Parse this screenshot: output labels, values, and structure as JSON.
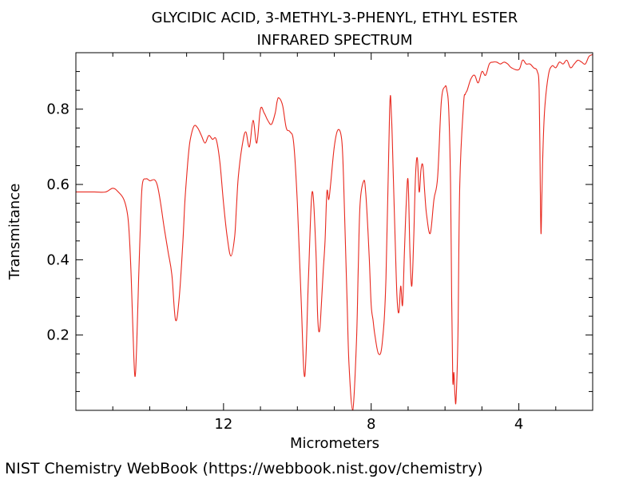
{
  "chart_data": {
    "type": "line",
    "title": "GLYCIDIC ACID, 3-METHYL-3-PHENYL, ETHYL ESTER",
    "subtitle": "INFRARED SPECTRUM",
    "xlabel": "Micrometers",
    "ylabel": "Transmitance",
    "xlim": [
      16.0,
      2.0
    ],
    "ylim": [
      0.0,
      0.95
    ],
    "x_ticks": [
      {
        "value": 12,
        "label": "12"
      },
      {
        "value": 8,
        "label": "8"
      },
      {
        "value": 4,
        "label": "4"
      }
    ],
    "y_ticks": [
      {
        "value": 0.2,
        "label": "0.2"
      },
      {
        "value": 0.4,
        "label": "0.4"
      },
      {
        "value": 0.6,
        "label": "0.6"
      },
      {
        "value": 0.8,
        "label": "0.8"
      }
    ],
    "grid": false,
    "series": [
      {
        "color": "#e8281e",
        "x": [
          16.0,
          15.5,
          15.2,
          15.0,
          14.85,
          14.7,
          14.6,
          14.55,
          14.5,
          14.45,
          14.4,
          14.35,
          14.3,
          14.25,
          14.2,
          14.1,
          14.0,
          13.8,
          13.6,
          13.5,
          13.4,
          13.3,
          13.2,
          13.1,
          13.05,
          13.0,
          12.95,
          12.9,
          12.8,
          12.7,
          12.6,
          12.5,
          12.4,
          12.3,
          12.2,
          12.1,
          12.0,
          11.9,
          11.8,
          11.7,
          11.65,
          11.6,
          11.5,
          11.4,
          11.3,
          11.2,
          11.1,
          11.0,
          10.9,
          10.8,
          10.7,
          10.6,
          10.55,
          10.5,
          10.4,
          10.3,
          10.2,
          10.1,
          10.0,
          9.9,
          9.8,
          9.7,
          9.6,
          9.5,
          9.45,
          9.4,
          9.35,
          9.3,
          9.25,
          9.2,
          9.15,
          9.1,
          9.0,
          8.9,
          8.8,
          8.75,
          8.7,
          8.65,
          8.6,
          8.5,
          8.4,
          8.35,
          8.3,
          8.2,
          8.15,
          8.1,
          8.05,
          8.0,
          7.95,
          7.9,
          7.8,
          7.7,
          7.6,
          7.5,
          7.45,
          7.4,
          7.35,
          7.3,
          7.25,
          7.2,
          7.15,
          7.1,
          7.05,
          7.0,
          6.95,
          6.9,
          6.85,
          6.8,
          6.75,
          6.7,
          6.65,
          6.6,
          6.55,
          6.5,
          6.4,
          6.3,
          6.2,
          6.1,
          6.0,
          5.95,
          5.9,
          5.85,
          5.82,
          5.79,
          5.76,
          5.73,
          5.7,
          5.65,
          5.6,
          5.5,
          5.45,
          5.4,
          5.3,
          5.2,
          5.1,
          5.0,
          4.9,
          4.8,
          4.7,
          4.6,
          4.5,
          4.4,
          4.3,
          4.2,
          4.0,
          3.9,
          3.8,
          3.7,
          3.6,
          3.5,
          3.45,
          3.42,
          3.4,
          3.38,
          3.35,
          3.3,
          3.2,
          3.1,
          3.0,
          2.9,
          2.8,
          2.7,
          2.6,
          2.5,
          2.4,
          2.3,
          2.2,
          2.1,
          2.0
        ],
        "y": [
          0.58,
          0.58,
          0.58,
          0.59,
          0.58,
          0.56,
          0.52,
          0.46,
          0.35,
          0.2,
          0.09,
          0.18,
          0.35,
          0.5,
          0.6,
          0.615,
          0.61,
          0.6,
          0.48,
          0.42,
          0.36,
          0.24,
          0.3,
          0.45,
          0.55,
          0.62,
          0.68,
          0.72,
          0.755,
          0.75,
          0.73,
          0.71,
          0.73,
          0.72,
          0.72,
          0.66,
          0.55,
          0.46,
          0.41,
          0.46,
          0.54,
          0.62,
          0.7,
          0.74,
          0.7,
          0.77,
          0.71,
          0.8,
          0.79,
          0.77,
          0.76,
          0.79,
          0.82,
          0.83,
          0.81,
          0.75,
          0.74,
          0.71,
          0.55,
          0.3,
          0.09,
          0.35,
          0.58,
          0.43,
          0.25,
          0.21,
          0.28,
          0.37,
          0.45,
          0.58,
          0.56,
          0.6,
          0.7,
          0.745,
          0.72,
          0.62,
          0.45,
          0.28,
          0.12,
          0.0,
          0.18,
          0.38,
          0.55,
          0.61,
          0.58,
          0.5,
          0.4,
          0.28,
          0.24,
          0.2,
          0.15,
          0.18,
          0.35,
          0.8,
          0.78,
          0.62,
          0.45,
          0.3,
          0.26,
          0.33,
          0.28,
          0.42,
          0.55,
          0.61,
          0.42,
          0.33,
          0.45,
          0.62,
          0.67,
          0.58,
          0.64,
          0.65,
          0.58,
          0.52,
          0.47,
          0.56,
          0.62,
          0.82,
          0.86,
          0.85,
          0.8,
          0.6,
          0.3,
          0.08,
          0.1,
          0.04,
          0.03,
          0.2,
          0.6,
          0.81,
          0.84,
          0.85,
          0.88,
          0.89,
          0.87,
          0.9,
          0.89,
          0.92,
          0.925,
          0.925,
          0.92,
          0.925,
          0.92,
          0.91,
          0.905,
          0.93,
          0.92,
          0.92,
          0.91,
          0.9,
          0.85,
          0.6,
          0.47,
          0.55,
          0.68,
          0.8,
          0.89,
          0.915,
          0.91,
          0.925,
          0.92,
          0.93,
          0.91,
          0.92,
          0.93,
          0.925,
          0.92,
          0.94,
          0.945
        ]
      }
    ]
  },
  "footer": {
    "credit": "NIST Chemistry WebBook (https://webbook.nist.gov/chemistry)"
  }
}
